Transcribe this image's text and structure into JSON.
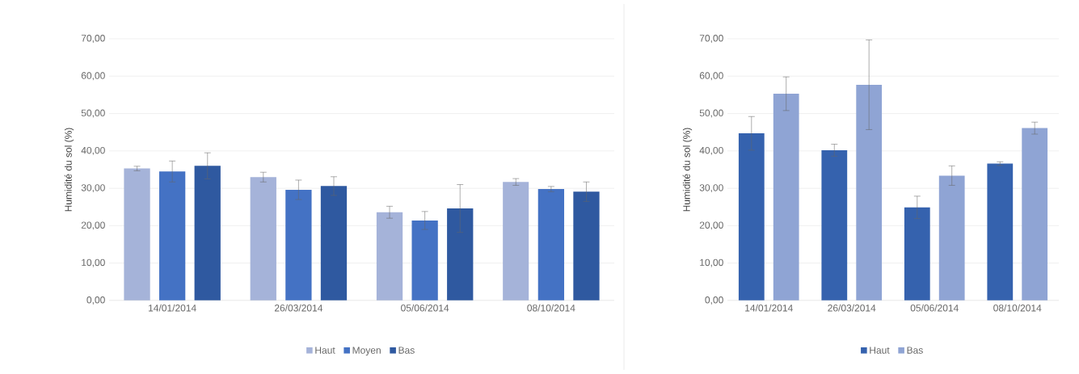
{
  "chart_data": [
    {
      "type": "bar",
      "ylabel": "Humidité du sol (%)",
      "categories": [
        "14/01/2014",
        "26/03/2014",
        "05/06/2014",
        "08/10/2014"
      ],
      "series": [
        {
          "name": "Haut",
          "color": "#a5b3d9",
          "values": [
            35.3,
            33.0,
            23.6,
            31.7
          ],
          "errors": [
            0.6,
            1.3,
            1.6,
            0.9
          ]
        },
        {
          "name": "Moyen",
          "color": "#4472c4",
          "values": [
            34.5,
            29.6,
            21.4,
            29.8
          ],
          "errors": [
            2.8,
            2.6,
            2.4,
            0.7
          ]
        },
        {
          "name": "Bas",
          "color": "#2f59a0",
          "values": [
            36.0,
            30.6,
            24.6,
            29.1
          ],
          "errors": [
            3.5,
            2.5,
            6.4,
            2.6
          ]
        }
      ],
      "ylim": [
        0,
        70
      ],
      "yticks": [
        {
          "value": 0,
          "label": "0,00"
        },
        {
          "value": 10,
          "label": "10,00"
        },
        {
          "value": 20,
          "label": "20,00"
        },
        {
          "value": 30,
          "label": "30,00"
        },
        {
          "value": 40,
          "label": "40,00"
        },
        {
          "value": 50,
          "label": "50,00"
        },
        {
          "value": 60,
          "label": "60,00"
        },
        {
          "value": 70,
          "label": "70,00"
        }
      ],
      "grid": "y",
      "legend": "bottom"
    },
    {
      "type": "bar",
      "ylabel": "Humidité du sol (%)",
      "categories": [
        "14/01/2014",
        "26/03/2014",
        "05/06/2014",
        "08/10/2014"
      ],
      "series": [
        {
          "name": "Haut",
          "color": "#3562ae",
          "values": [
            44.7,
            40.2,
            24.9,
            36.6
          ],
          "errors": [
            4.5,
            1.6,
            3.0,
            0.5
          ]
        },
        {
          "name": "Bas",
          "color": "#8fa4d4",
          "values": [
            55.3,
            57.7,
            33.4,
            46.1
          ],
          "errors": [
            4.5,
            12.0,
            2.6,
            1.6
          ]
        }
      ],
      "ylim": [
        0,
        70
      ],
      "yticks": [
        {
          "value": 0,
          "label": "0,00"
        },
        {
          "value": 10,
          "label": "10,00"
        },
        {
          "value": 20,
          "label": "20,00"
        },
        {
          "value": 30,
          "label": "30,00"
        },
        {
          "value": 40,
          "label": "40,00"
        },
        {
          "value": 50,
          "label": "50,00"
        },
        {
          "value": 60,
          "label": "60,00"
        },
        {
          "value": 70,
          "label": "70,00"
        }
      ],
      "grid": "y",
      "legend": "bottom"
    }
  ]
}
